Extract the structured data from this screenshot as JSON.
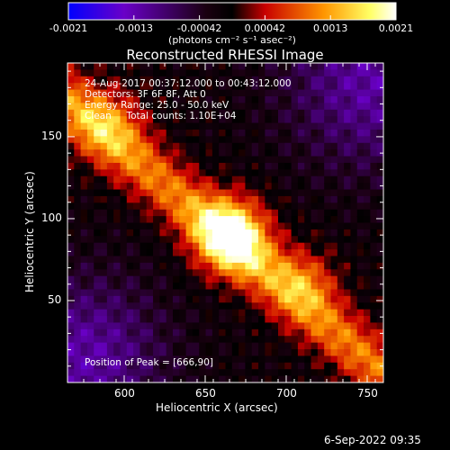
{
  "chart_data": {
    "type": "heatmap",
    "title": "Reconstructed RHESSI Image",
    "xlabel": "Heliocentric X (arcsec)",
    "ylabel": "Heliocentric Y (arcsec)",
    "xlim": [
      565,
      760
    ],
    "ylim": [
      0,
      195
    ],
    "x_ticks": [
      600,
      650,
      700,
      750
    ],
    "y_ticks": [
      50,
      100,
      150
    ],
    "colorbar": {
      "range": [
        -0.0021,
        0.0021
      ],
      "tick_labels": [
        "-0.0021",
        "-0.0013",
        "-0.00042",
        "0.00042",
        "0.0013",
        "0.0021"
      ],
      "units": "(photons cm⁻² s⁻¹ asec⁻²)",
      "colors": [
        "#0000ff",
        "#6a00c8",
        "#000000",
        "#c80000",
        "#ff9600",
        "#ffff64",
        "#ffffff"
      ]
    },
    "annotations": {
      "time": "24-Aug-2017 00:37:12.000 to 00:43:12.000",
      "detectors": "Detectors: 3F 6F 8F, Att 0",
      "energy": "Energy Range: 25.0 - 50.0 keV",
      "method": "Clean     Total counts: 1.10E+04",
      "peak": "Position of Peak = [666,90]"
    },
    "peak": [
      666,
      90
    ],
    "timestamp": "6-Sep-2022 09:35"
  }
}
